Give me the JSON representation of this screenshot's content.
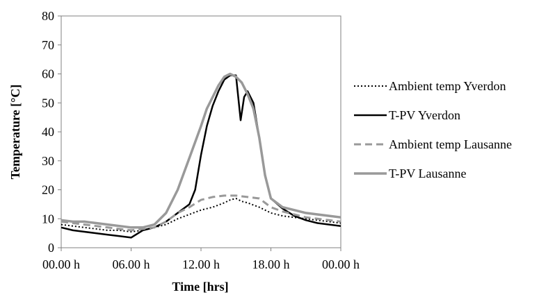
{
  "chart_data": {
    "type": "line",
    "xlabel": "Time [hrs]",
    "ylabel": "Temperature [°C]",
    "xlim": [
      0,
      24
    ],
    "ylim": [
      0,
      80
    ],
    "y_ticks": [
      0,
      10,
      20,
      30,
      40,
      50,
      60,
      70,
      80
    ],
    "x_ticks": [
      {
        "value": 0,
        "label": "00.00 h"
      },
      {
        "value": 6,
        "label": "06.00 h"
      },
      {
        "value": 12,
        "label": "12.00 h"
      },
      {
        "value": 18,
        "label": "18.00 h"
      },
      {
        "value": 24,
        "label": "00.00 h"
      }
    ],
    "grid": false,
    "legend_position": "right",
    "series": [
      {
        "name": "Ambient temp Yverdon",
        "color": "#000000",
        "style": "dotted",
        "x": [
          0,
          1,
          2,
          3,
          4,
          5,
          6,
          7,
          8,
          9,
          10,
          11,
          12,
          13,
          14,
          14.5,
          15,
          15.5,
          16,
          17,
          18,
          19,
          20,
          21,
          22,
          23,
          24
        ],
        "y": [
          8,
          7.5,
          7,
          6.5,
          6,
          6,
          5.5,
          6,
          7,
          8,
          10,
          11.5,
          13,
          14,
          15.5,
          16.5,
          17,
          16,
          15.5,
          14,
          12,
          11,
          10.5,
          10,
          9.5,
          9,
          8.5
        ]
      },
      {
        "name": "T-PV Yverdon",
        "color": "#000000",
        "style": "solid",
        "x": [
          0,
          1,
          2,
          3,
          4,
          5,
          6,
          7,
          8,
          9,
          10,
          11,
          11.5,
          12,
          12.5,
          13,
          13.5,
          14,
          14.5,
          15,
          15.4,
          15.7,
          16,
          16.5,
          17,
          17.5,
          18,
          19,
          20,
          21,
          22,
          23,
          24
        ],
        "y": [
          7,
          6,
          5.5,
          5,
          4.5,
          4,
          3.5,
          6,
          7,
          9,
          12,
          15,
          20,
          32,
          42,
          49,
          54,
          58,
          59.5,
          59.5,
          44,
          52,
          54,
          50,
          38,
          25,
          17,
          13.5,
          11,
          9.5,
          8.5,
          8,
          7.5
        ]
      },
      {
        "name": "Ambient temp Lausanne",
        "color": "#999999",
        "style": "dashed",
        "x": [
          0,
          1,
          2,
          3,
          4,
          5,
          6,
          7,
          8,
          9,
          10,
          11,
          12,
          13,
          14,
          15,
          16,
          17,
          18,
          19,
          20,
          21,
          22,
          23,
          24
        ],
        "y": [
          9,
          8.5,
          8,
          7.5,
          7,
          6.5,
          6,
          6.5,
          7,
          9,
          12,
          14,
          16.5,
          17.5,
          18,
          18,
          17.5,
          17,
          14,
          12.5,
          11.5,
          10.5,
          10,
          9.5,
          9
        ]
      },
      {
        "name": "T-PV Lausanne",
        "color": "#999999",
        "style": "solid",
        "x": [
          0,
          1,
          2,
          3,
          4,
          5,
          6,
          7,
          8,
          9,
          10,
          11,
          12,
          12.5,
          13,
          13.5,
          14,
          14.5,
          15,
          15.5,
          16,
          16.5,
          17,
          17.5,
          18,
          19,
          20,
          21,
          22,
          23,
          24
        ],
        "y": [
          9.5,
          9,
          9,
          8.5,
          8,
          7.5,
          7,
          7,
          8,
          12,
          20,
          31,
          42,
          48,
          52,
          56,
          59,
          60,
          59,
          57,
          53,
          48,
          38,
          25,
          17,
          14,
          13,
          12,
          11.5,
          11,
          10.5
        ]
      }
    ]
  }
}
